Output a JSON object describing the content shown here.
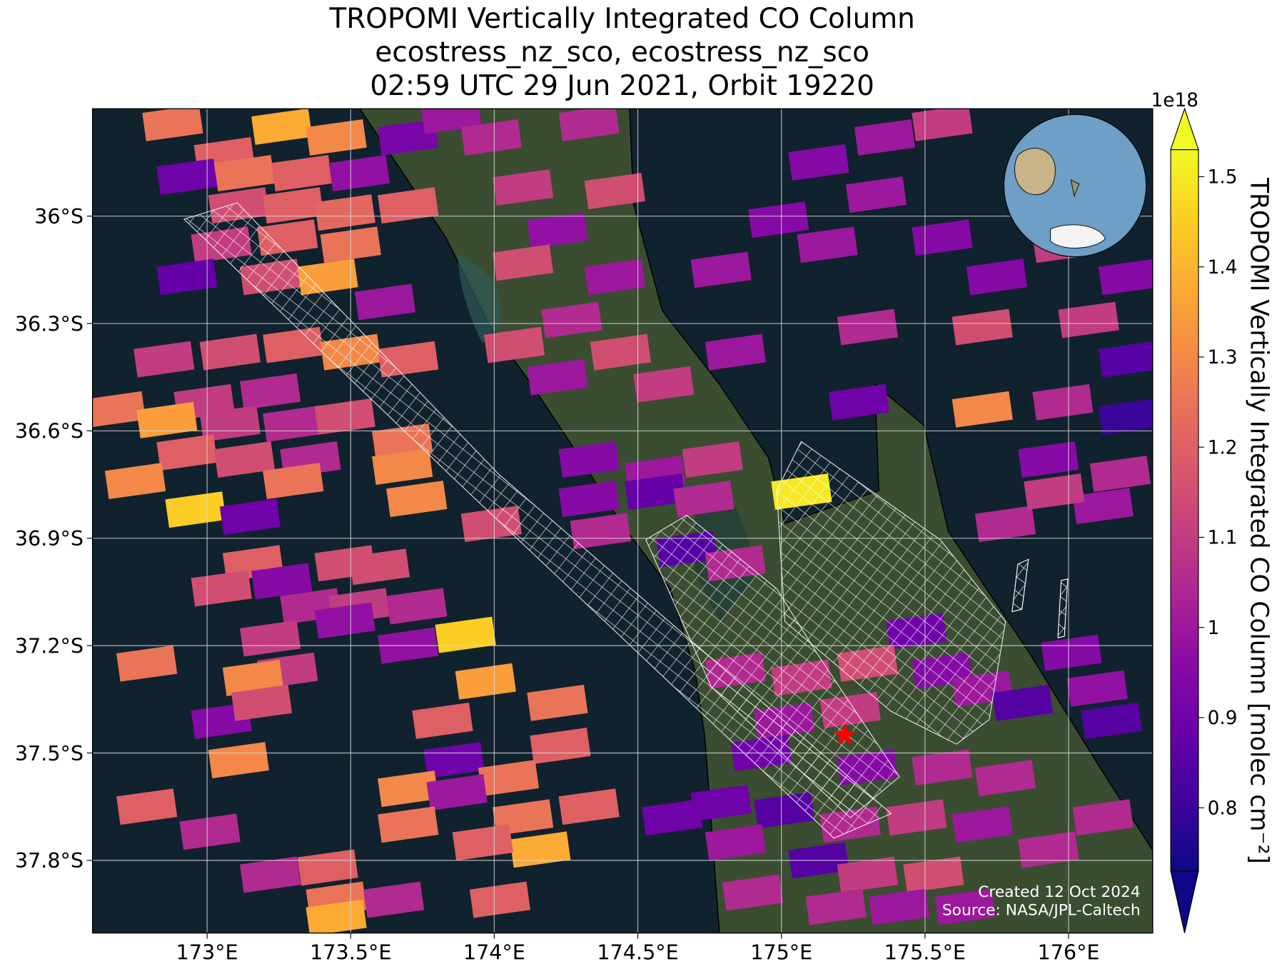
{
  "chart_data": {
    "type": "map",
    "title": [
      "TROPOMI Vertically Integrated CO Column",
      "ecostress_nz_sco, ecostress_nz_sco",
      "02:59 UTC 29 Jun 2021, Orbit 19220"
    ],
    "xlim": [
      172.601,
      176.293
    ],
    "ylim": [
      -38.003,
      -35.7
    ],
    "xticks": [
      {
        "value": 173,
        "label": "173°E"
      },
      {
        "value": 173.5,
        "label": "173.5°E"
      },
      {
        "value": 174,
        "label": "174°E"
      },
      {
        "value": 174.5,
        "label": "174.5°E"
      },
      {
        "value": 175,
        "label": "175°E"
      },
      {
        "value": 175.5,
        "label": "175.5°E"
      },
      {
        "value": 176,
        "label": "176°E"
      }
    ],
    "yticks": [
      {
        "value": -36,
        "label": "36°S"
      },
      {
        "value": -36.3,
        "label": "36.3°S"
      },
      {
        "value": -36.6,
        "label": "36.6°S"
      },
      {
        "value": -36.9,
        "label": "36.9°S"
      },
      {
        "value": -37.2,
        "label": "37.2°S"
      },
      {
        "value": -37.5,
        "label": "37.5°S"
      },
      {
        "value": -37.8,
        "label": "37.8°S"
      }
    ],
    "grid": true,
    "pixels": {
      "lon": [
        172.88,
        173.26,
        173.45,
        173.06,
        172.93,
        173.13,
        173.33,
        173.53,
        173.7,
        173.11,
        173.3,
        173.48,
        173.7,
        173.05,
        173.28,
        173.5,
        172.93,
        173.22,
        173.42,
        173.62,
        172.85,
        173.08,
        173.3,
        173.5,
        173.7,
        172.99,
        173.22,
        172.68,
        172.86,
        173.08,
        173.3,
        173.48,
        173.68,
        172.93,
        173.13,
        173.36,
        173.68,
        172.75,
        173.3,
        172.96,
        173.15,
        173.73,
        173.99,
        173.16,
        173.05,
        173.26,
        173.48,
        173.6,
        173.36,
        173.53,
        173.73,
        173.22,
        173.48,
        173.9,
        172.79,
        173.28,
        173.16,
        173.7,
        173.97,
        173.05,
        173.19,
        173.82,
        174.22,
        173.11,
        173.86,
        174.23,
        174.05,
        173.7,
        172.79,
        173.87,
        173.7,
        174.1,
        174.33,
        173.01,
        174.16,
        173.96,
        173.42,
        173.22,
        173.45,
        173.65,
        173.45,
        174.02,
        173.85,
        173.99,
        174.33,
        174.1,
        174.42,
        174.22,
        174.1,
        174.42,
        174.27,
        174.07,
        174.44,
        174.22,
        174.59,
        174.84,
        174.79,
        174.99,
        175.13,
        175.36,
        175.56,
        175.33,
        175.56,
        175.75,
        175.16,
        175.98,
        176.21,
        175.3,
        175.7,
        176.07,
        176.21,
        175.27,
        175.7,
        175.98,
        176.21,
        175.93,
        176.18,
        176.12,
        174.33,
        174.56,
        174.76,
        174.33,
        174.56,
        174.73,
        174.37,
        174.67,
        174.84,
        175.07,
        175.78,
        175.95,
        175.47,
        175.3,
        175.56,
        175.7,
        176.01,
        176.1,
        176.15,
        175.84,
        174.84,
        175.07,
        175.01,
        174.93,
        175.24,
        175.3,
        175.56,
        175.78,
        174.79,
        175.01,
        175.24,
        175.47,
        175.7,
        174.84,
        175.13,
        175.3,
        175.53,
        174.9,
        175.19,
        175.41,
        175.93,
        176.12,
        174.62,
        175.64
      ],
      "lat": [
        -35.74,
        -35.75,
        -35.78,
        -35.83,
        -35.89,
        -35.88,
        -35.88,
        -35.88,
        -35.78,
        -35.97,
        -35.97,
        -35.99,
        -35.97,
        -36.08,
        -36.06,
        -36.08,
        -36.17,
        -36.17,
        -36.17,
        -36.24,
        -36.4,
        -36.38,
        -36.36,
        -36.38,
        -36.4,
        -36.52,
        -36.49,
        -36.54,
        -36.57,
        -36.58,
        -36.58,
        -36.56,
        -36.63,
        -36.66,
        -36.68,
        -36.68,
        -36.7,
        -36.74,
        -36.74,
        -36.82,
        -36.84,
        -36.79,
        -36.86,
        -36.97,
        -37.04,
        -37.02,
        -36.97,
        -36.98,
        -37.09,
        -37.09,
        -37.09,
        -37.18,
        -37.13,
        -37.17,
        -37.25,
        -37.27,
        -37.29,
        -37.2,
        -37.3,
        -37.41,
        -37.36,
        -37.41,
        -37.36,
        -37.52,
        -37.52,
        -37.48,
        -37.57,
        -37.6,
        -37.65,
        -37.61,
        -37.7,
        -37.68,
        -37.65,
        -37.72,
        -37.77,
        -37.75,
        -37.82,
        -37.84,
        -37.91,
        -37.91,
        -37.96,
        -37.91,
        -35.72,
        -35.78,
        -35.74,
        -35.92,
        -35.93,
        -36.04,
        -36.13,
        -36.17,
        -36.29,
        -36.36,
        -36.38,
        -36.45,
        -36.47,
        -36.38,
        -36.15,
        -36.01,
        -35.85,
        -35.78,
        -35.74,
        -35.94,
        -36.06,
        -36.17,
        -36.08,
        -36.08,
        -36.17,
        -36.31,
        -36.31,
        -36.29,
        -36.4,
        -36.52,
        -36.54,
        -36.52,
        -36.56,
        -36.68,
        -36.72,
        -36.81,
        -36.68,
        -36.72,
        -36.68,
        -36.79,
        -36.77,
        -36.79,
        -36.88,
        -36.93,
        -36.97,
        -36.77,
        -36.86,
        -36.77,
        -37.16,
        -37.25,
        -37.27,
        -37.32,
        -37.22,
        -37.32,
        -37.41,
        -37.36,
        -37.27,
        -37.29,
        -37.41,
        -37.5,
        -37.38,
        -37.54,
        -37.54,
        -37.57,
        -37.64,
        -37.66,
        -37.7,
        -37.68,
        -37.7,
        -37.75,
        -37.8,
        -37.84,
        -37.84,
        -37.89,
        -37.93,
        -37.93,
        -37.77,
        -37.68,
        -37.68,
        -37.93
      ],
      "values": [
        1.25,
        1.38,
        1.3,
        1.2,
        0.9,
        1.25,
        1.2,
        0.98,
        0.92,
        1.15,
        1.2,
        1.22,
        1.2,
        1.1,
        1.2,
        1.25,
        0.88,
        1.15,
        1.35,
        1.0,
        1.1,
        1.15,
        1.2,
        1.3,
        1.2,
        1.1,
        1.05,
        1.25,
        1.35,
        1.1,
        1.05,
        1.15,
        1.25,
        1.2,
        1.15,
        1.05,
        1.3,
        1.3,
        1.25,
        1.45,
        0.9,
        1.3,
        1.15,
        1.2,
        1.15,
        0.95,
        1.15,
        1.15,
        1.05,
        1.1,
        1.05,
        1.1,
        0.98,
        1.45,
        1.25,
        1.1,
        1.3,
        0.98,
        1.35,
        0.95,
        1.15,
        1.2,
        1.25,
        1.3,
        0.9,
        1.2,
        1.25,
        1.3,
        1.2,
        1.0,
        1.25,
        1.25,
        1.2,
        1.05,
        1.38,
        1.2,
        1.2,
        1.05,
        1.25,
        1.05,
        1.38,
        1.2,
        1.0,
        1.05,
        1.05,
        1.1,
        1.15,
        0.98,
        1.15,
        1.0,
        1.05,
        1.15,
        1.15,
        1.0,
        1.1,
        1.0,
        1.0,
        0.95,
        0.95,
        1.0,
        1.1,
        1.0,
        0.95,
        0.95,
        1.0,
        1.1,
        0.95,
        1.05,
        1.15,
        1.1,
        0.85,
        0.9,
        1.3,
        1.05,
        0.8,
        0.95,
        1.05,
        1.0,
        0.95,
        1.0,
        1.1,
        0.95,
        0.88,
        1.05,
        1.05,
        0.85,
        1.05,
        1.5,
        1.05,
        1.1,
        0.9,
        1.15,
        0.95,
        1.0,
        0.95,
        0.98,
        0.85,
        0.85,
        1.05,
        1.1,
        1.0,
        0.9,
        1.1,
        0.95,
        1.05,
        1.05,
        0.9,
        0.85,
        1.05,
        1.1,
        1.0,
        1.0,
        0.85,
        1.1,
        1.15,
        1.05,
        1.05,
        1.0,
        1.05,
        1.05,
        0.9,
        1.0
      ]
    },
    "marker": {
      "lon": 175.22,
      "lat": -37.45,
      "color": "#ff0000"
    },
    "colorbar": {
      "label": "TROPOMI Vertically Integrated CO Column [molec cm⁻²]",
      "offset_label": "1e18",
      "colormap": "plasma",
      "extend": "both",
      "lim": [
        0.73,
        1.53
      ],
      "ticks": [
        0.8,
        0.9,
        1.0,
        1.1,
        1.2,
        1.3,
        1.4,
        1.5
      ]
    },
    "credits": [
      "Created 12 Oct 2024",
      "Source: NASA/JPL-Caltech"
    ]
  }
}
